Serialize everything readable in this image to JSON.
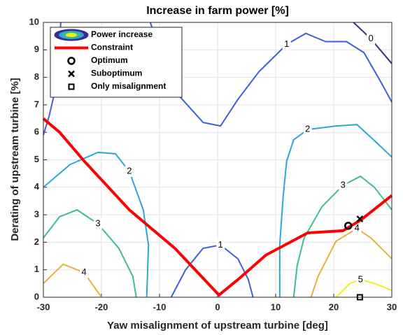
{
  "chart_data": {
    "type": "contour",
    "title": "Increase in farm power [%]",
    "xlabel": "Yaw misalignment of upstream turbine [deg]",
    "ylabel": "Derating of upstream turbine [%]",
    "xlim": [
      -30,
      30
    ],
    "ylim": [
      0,
      10
    ],
    "xticks": [
      -30,
      -20,
      -10,
      0,
      10,
      20,
      30
    ],
    "yticks": [
      0,
      1,
      2,
      3,
      4,
      5,
      6,
      7,
      8,
      9,
      10
    ],
    "grid": true,
    "legend": "upper left",
    "contour_name": "Power increase",
    "contours": [
      {
        "level": 0,
        "color": "#3a2b8e",
        "x": [
          23.4,
          26.4,
          30
        ],
        "y": [
          10,
          9.4,
          8.5
        ]
      },
      {
        "level": 1,
        "color": "#3d5fd8",
        "x": [
          -30,
          -29,
          -28,
          -27.5,
          -27
        ],
        "y": [
          5.9,
          6.6,
          7.5,
          8.5,
          10
        ]
      },
      {
        "level": 1,
        "color": "#3d5fd8",
        "x": [
          -11.6,
          -7.35,
          -2.5,
          0.5,
          3.5,
          7.1,
          11.9,
          15.2,
          18.6,
          22.2,
          25.2,
          28.2,
          30
        ],
        "y": [
          10,
          7.5,
          6.36,
          6.23,
          7.2,
          8.2,
          9.2,
          9.6,
          9.3,
          9.3,
          8.9,
          7.8,
          7.1
        ]
      },
      {
        "level": 1,
        "color": "#3d5fd8",
        "x": [
          -8.0,
          -5.5,
          -2.5,
          0.5,
          3.5,
          5.3,
          6.1
        ],
        "y": [
          0,
          1.0,
          1.78,
          1.9,
          1.4,
          0.64,
          0
        ]
      },
      {
        "level": 2,
        "color": "#2ba6d9",
        "x": [
          -30,
          -25.4,
          -20.6,
          -17.6,
          -15.2,
          -12.8,
          -11.9,
          -12.2
        ],
        "y": [
          4.0,
          4.83,
          5.27,
          5.22,
          4.58,
          3.18,
          1.9,
          0
        ]
      },
      {
        "level": 2,
        "color": "#2ba6d9",
        "x": [
          10.7,
          10.7,
          11.3,
          11.9,
          13.1,
          15.5,
          20.4,
          24,
          27,
          30
        ],
        "y": [
          0,
          1.9,
          3.7,
          4.96,
          5.73,
          6.1,
          6.23,
          6.28,
          5.7,
          5.1
        ]
      },
      {
        "level": 3,
        "color": "#3cbf88",
        "x": [
          -30,
          -27.2,
          -24.2,
          -20.6,
          -17,
          -14.6,
          -14
        ],
        "y": [
          2.16,
          2.93,
          3.18,
          2.67,
          1.78,
          0.76,
          0
        ]
      },
      {
        "level": 3,
        "color": "#3cbf88",
        "x": [
          13.1,
          13.7,
          14.9,
          18,
          21.6,
          24.6,
          27,
          30
        ],
        "y": [
          0,
          1.15,
          2.16,
          3.3,
          4.07,
          4.4,
          4.0,
          3.18
        ]
      },
      {
        "level": 4,
        "color": "#e2b43c",
        "x": [
          -30,
          -26.6,
          -23,
          -20
        ],
        "y": [
          0.5,
          1.2,
          0.9,
          0
        ]
      },
      {
        "level": 4,
        "color": "#e2b43c",
        "x": [
          16.1,
          17.3,
          20.4,
          24,
          26.4,
          30
        ],
        "y": [
          0,
          0.76,
          2.04,
          2.5,
          2.16,
          1.4
        ]
      },
      {
        "level": 5,
        "color": "#f3ef1e",
        "x": [
          20.4,
          22.8,
          24.6,
          27,
          30
        ],
        "y": [
          0,
          0.5,
          0.64,
          0.5,
          0.25
        ]
      }
    ],
    "series": [
      {
        "name": "Constraint",
        "color": "#ff0000",
        "kind": "line",
        "x": [
          -30,
          -27.2,
          -23,
          -15.2,
          -7.35,
          0.24,
          3.5,
          8.3,
          15.5,
          21.6,
          24.6,
          27.6,
          30
        ],
        "y": [
          6.5,
          6.0,
          4.96,
          3.18,
          1.78,
          0.08,
          0.64,
          1.53,
          2.34,
          2.42,
          2.8,
          3.3,
          3.7
        ]
      },
      {
        "name": "Optimum",
        "color": "#000000",
        "kind": "circle",
        "x": [
          22.5
        ],
        "y": [
          2.6
        ]
      },
      {
        "name": "Suboptimum",
        "color": "#000000",
        "kind": "cross",
        "x": [
          24.5
        ],
        "y": [
          2.85
        ]
      },
      {
        "name": "Only misalignment",
        "color": "#000000",
        "kind": "square",
        "x": [
          24.5
        ],
        "y": [
          0
        ]
      }
    ]
  }
}
